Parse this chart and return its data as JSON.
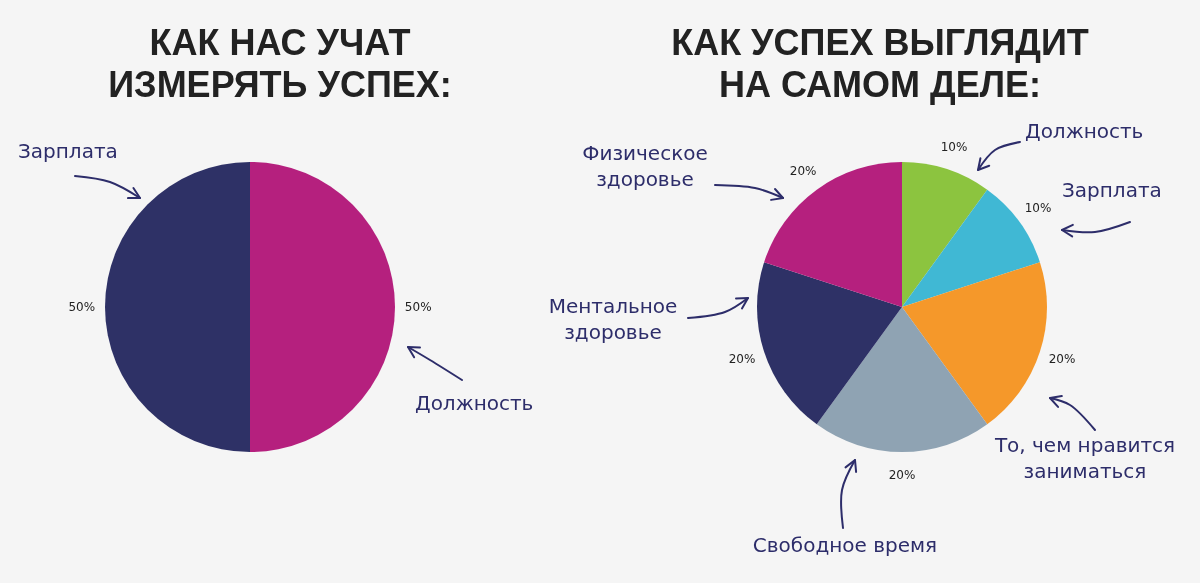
{
  "chart_data": [
    {
      "type": "pie",
      "title": "КАК НАС УЧАТ\nИЗМЕРЯТЬ УСПЕХ:",
      "categories": [
        "Должность",
        "Зарплата"
      ],
      "values": [
        50,
        50
      ],
      "colors": [
        "#b5207e",
        "#2e3166"
      ],
      "value_labels": [
        "50%",
        "50%"
      ]
    },
    {
      "type": "pie",
      "title": "КАК УСПЕХ ВЫГЛЯДИТ\nНА САМОМ ДЕЛЕ:",
      "categories": [
        "Должность",
        "Зарплата",
        "То, чем нравится заниматься",
        "Свободное время",
        "Ментальное здоровье",
        "Физическое здоровье"
      ],
      "values": [
        10,
        10,
        20,
        20,
        20,
        20
      ],
      "colors": [
        "#8cc43f",
        "#40b8d4",
        "#f5982a",
        "#8fa3b3",
        "#2e3166",
        "#b5207e"
      ],
      "value_labels": [
        "10%",
        "10%",
        "20%",
        "20%",
        "20%",
        "20%"
      ]
    }
  ]
}
